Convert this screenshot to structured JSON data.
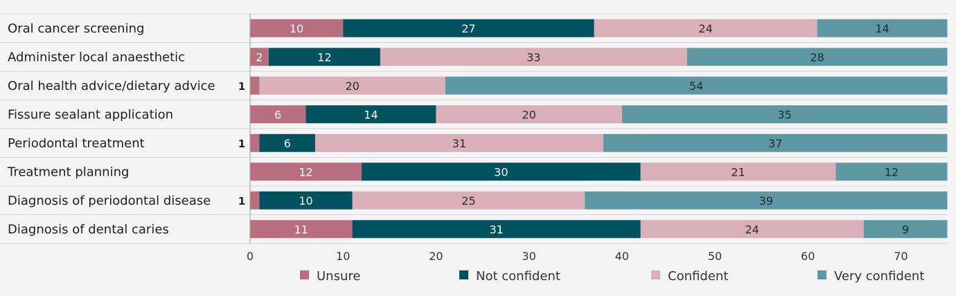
{
  "chart_data": {
    "type": "bar",
    "orientation": "horizontal",
    "stacked": true,
    "title": "",
    "xlabel": "",
    "ylabel": "",
    "xlim": [
      0,
      75
    ],
    "xticks": [
      0,
      10,
      20,
      30,
      40,
      50,
      60,
      70
    ],
    "grid": false,
    "legend_position": "bottom",
    "categories": [
      "Oral cancer screening",
      "Administer local anaesthetic",
      "Oral health advice/dietary advice",
      "Fissure sealant application",
      "Periodontal treatment",
      "Treatment planning",
      "Diagnosis of periodontal disease",
      "Diagnosis of dental caries"
    ],
    "series": [
      {
        "name": "Unsure",
        "color": "#b96d81",
        "label_color": "#ffffff",
        "values": [
          10,
          2,
          1,
          6,
          1,
          12,
          1,
          11
        ]
      },
      {
        "name": "Not confident",
        "color": "#00525e",
        "label_color": "#ffffff",
        "values": [
          27,
          12,
          0,
          14,
          6,
          30,
          10,
          31
        ]
      },
      {
        "name": "Confident",
        "color": "#d9b0ba",
        "label_color": "#2b2b2b",
        "values": [
          24,
          33,
          20,
          20,
          31,
          21,
          25,
          24
        ]
      },
      {
        "name": "Very confident",
        "color": "#5e99a3",
        "label_color": "#1a2a2e",
        "values": [
          14,
          28,
          54,
          35,
          37,
          12,
          39,
          9
        ]
      }
    ]
  }
}
